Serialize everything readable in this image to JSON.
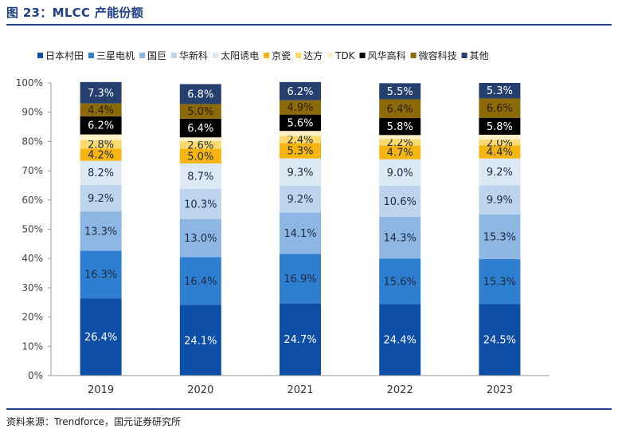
{
  "figure": {
    "title": "图 23：MLCC 产能份额",
    "source": "资料来源：Trendforce，国元证券研究所"
  },
  "chart_data": {
    "type": "bar",
    "stacked": true,
    "title": "MLCC 产能份额",
    "xlabel": "",
    "ylabel": "",
    "ylim": [
      0,
      100
    ],
    "yticks": [
      "0%",
      "10%",
      "20%",
      "30%",
      "40%",
      "50%",
      "60%",
      "70%",
      "80%",
      "90%",
      "100%"
    ],
    "categories": [
      "2019",
      "2020",
      "2021",
      "2022",
      "2023"
    ],
    "legend_position": "top",
    "series": [
      {
        "name": "日本村田",
        "color": "#0d4ea6",
        "label_color": "#ffffff",
        "values": [
          26.4,
          24.1,
          24.7,
          24.4,
          24.5
        ],
        "labels": [
          "26.4%",
          "24.1%",
          "24.7%",
          "24.4%",
          "24.5%"
        ]
      },
      {
        "name": "三星电机",
        "color": "#2f7fd0",
        "label_color": "#1a2a44",
        "values": [
          16.3,
          16.4,
          16.9,
          15.6,
          15.3
        ],
        "labels": [
          "16.3%",
          "16.4%",
          "16.9%",
          "15.6%",
          "15.3%"
        ]
      },
      {
        "name": "国巨",
        "color": "#8db6e3",
        "label_color": "#1a2a44",
        "values": [
          13.3,
          13.0,
          14.1,
          14.3,
          15.3
        ],
        "labels": [
          "13.3%",
          "13.0%",
          "14.1%",
          "14.3%",
          "15.3%"
        ]
      },
      {
        "name": "华新科",
        "color": "#bcd4ee",
        "label_color": "#1a2a44",
        "values": [
          9.2,
          10.3,
          9.2,
          10.6,
          9.9
        ],
        "labels": [
          "9.2%",
          "10.3%",
          "9.2%",
          "10.6%",
          "9.9%"
        ]
      },
      {
        "name": "太阳诱电",
        "color": "#dde8f5",
        "label_color": "#1a2a44",
        "values": [
          8.2,
          8.7,
          9.3,
          9.0,
          9.2
        ],
        "labels": [
          "8.2%",
          "8.7%",
          "9.3%",
          "9.0%",
          "9.2%"
        ]
      },
      {
        "name": "京瓷",
        "color": "#f6b510",
        "label_color": "#1a2a44",
        "values": [
          4.2,
          5.0,
          5.3,
          4.7,
          4.4
        ],
        "labels": [
          "4.2%",
          "5.0%",
          "5.3%",
          "4.7%",
          "4.4%"
        ]
      },
      {
        "name": "达方",
        "color": "#fbd96a",
        "label_color": "#1a2a44",
        "values": [
          2.8,
          2.6,
          2.4,
          2.2,
          2.0
        ],
        "labels": [
          "2.8%",
          "2.6%",
          "2.4%",
          "2.2%",
          "2.0%"
        ]
      },
      {
        "name": "TDK",
        "color": "#fdf0c4",
        "label_color": "#1a2a44",
        "values": [
          2.0,
          1.3,
          1.7,
          1.4,
          1.7
        ],
        "labels": [
          "",
          "",
          "",
          "",
          ""
        ]
      },
      {
        "name": "风华高科",
        "color": "#000000",
        "label_color": "#ffffff",
        "values": [
          6.2,
          6.4,
          5.6,
          5.8,
          5.8
        ],
        "labels": [
          "6.2%",
          "6.4%",
          "5.6%",
          "5.8%",
          "5.8%"
        ]
      },
      {
        "name": "微容科技",
        "color": "#8d6a08",
        "label_color": "#2a2000",
        "values": [
          4.4,
          5.0,
          4.9,
          6.4,
          6.6
        ],
        "labels": [
          "4.4%",
          "5.0%",
          "4.9%",
          "6.4%",
          "6.6%"
        ]
      },
      {
        "name": "其他",
        "color": "#253f6e",
        "label_color": "#ffffff",
        "values": [
          7.3,
          6.8,
          6.2,
          5.5,
          5.3
        ],
        "labels": [
          "7.3%",
          "6.8%",
          "6.2%",
          "5.5%",
          "5.3%"
        ]
      }
    ]
  }
}
